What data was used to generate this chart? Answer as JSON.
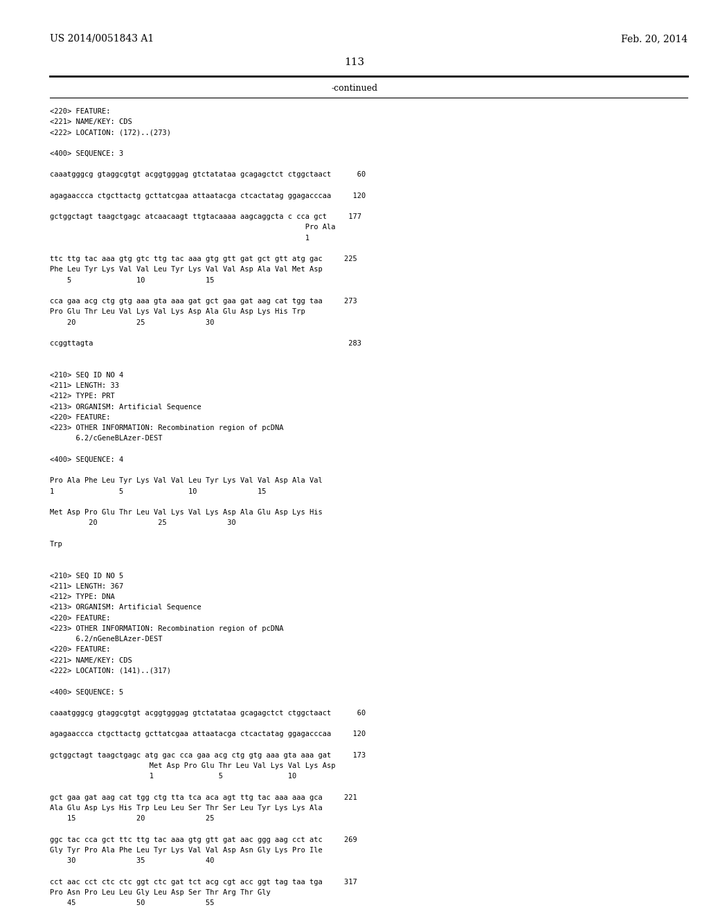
{
  "header_left": "US 2014/0051843 A1",
  "header_right": "Feb. 20, 2014",
  "page_number": "113",
  "continued_text": "-continued",
  "background_color": "#ffffff",
  "text_color": "#000000",
  "lines": [
    "<220> FEATURE:",
    "<221> NAME/KEY: CDS",
    "<222> LOCATION: (172)..(273)",
    "",
    "<400> SEQUENCE: 3",
    "",
    "caaatgggcg gtaggcgtgt acggtgggag gtctatataa gcagagctct ctggctaact      60",
    "",
    "agagaaccca ctgcttactg gcttatcgaa attaatacga ctcactatag ggagacccaa     120",
    "",
    "gctggctagt taagctgagc atcaacaagt ttgtacaaaa aagcaggcta c cca gct     177",
    "                                                           Pro Ala",
    "                                                           1",
    "",
    "ttc ttg tac aaa gtg gtc ttg tac aaa gtg gtt gat gct gtt atg gac     225",
    "Phe Leu Tyr Lys Val Val Leu Tyr Lys Val Val Asp Ala Val Met Asp",
    "    5               10              15",
    "",
    "cca gaa acg ctg gtg aaa gta aaa gat gct gaa gat aag cat tgg taa     273",
    "Pro Glu Thr Leu Val Lys Val Lys Asp Ala Glu Asp Lys His Trp",
    "    20              25              30",
    "",
    "ccggttagta                                                           283",
    "",
    "",
    "<210> SEQ ID NO 4",
    "<211> LENGTH: 33",
    "<212> TYPE: PRT",
    "<213> ORGANISM: Artificial Sequence",
    "<220> FEATURE:",
    "<223> OTHER INFORMATION: Recombination region of pcDNA",
    "      6.2/cGeneBLAzer-DEST",
    "",
    "<400> SEQUENCE: 4",
    "",
    "Pro Ala Phe Leu Tyr Lys Val Val Leu Tyr Lys Val Val Asp Ala Val",
    "1               5               10              15",
    "",
    "Met Asp Pro Glu Thr Leu Val Lys Val Lys Asp Ala Glu Asp Lys His",
    "         20              25              30",
    "",
    "Trp",
    "",
    "",
    "<210> SEQ ID NO 5",
    "<211> LENGTH: 367",
    "<212> TYPE: DNA",
    "<213> ORGANISM: Artificial Sequence",
    "<220> FEATURE:",
    "<223> OTHER INFORMATION: Recombination region of pcDNA",
    "      6.2/nGeneBLAzer-DEST",
    "<220> FEATURE:",
    "<221> NAME/KEY: CDS",
    "<222> LOCATION: (141)..(317)",
    "",
    "<400> SEQUENCE: 5",
    "",
    "caaatgggcg gtaggcgtgt acggtgggag gtctatataa gcagagctct ctggctaact      60",
    "",
    "agagaaccca ctgcttactg gcttatcgaa attaatacga ctcactatag ggagacccaa     120",
    "",
    "gctggctagt taagctgagc atg gac cca gaa acg ctg gtg aaa gta aaa gat     173",
    "                       Met Asp Pro Glu Thr Leu Val Lys Val Lys Asp",
    "                       1               5               10",
    "",
    "gct gaa gat aag cat tgg ctg tta tca aca agt ttg tac aaa aaa gca     221",
    "Ala Glu Asp Lys His Trp Leu Leu Ser Thr Ser Leu Tyr Lys Lys Ala",
    "    15              20              25",
    "",
    "ggc tac cca gct ttc ttg tac aaa gtg gtt gat aac ggg aag cct atc     269",
    "Gly Tyr Pro Ala Phe Leu Tyr Lys Val Val Asp Asn Gly Lys Pro Ile",
    "    30              35              40",
    "",
    "cct aac cct ctc ctc ggt ctc gat tct acg cgt acc ggt tag taa tga     317",
    "Pro Asn Pro Leu Leu Gly Leu Asp Ser Thr Arg Thr Gly",
    "    45              50              55"
  ]
}
